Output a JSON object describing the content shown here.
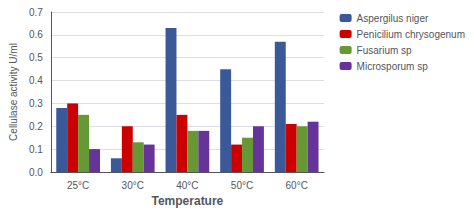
{
  "chart_data": {
    "type": "bar",
    "xlabel": "Temperature",
    "ylabel": "Cellulase activity U/ml",
    "categories": [
      "25°C",
      "30°C",
      "40°C",
      "50°C",
      "60°C"
    ],
    "series": [
      {
        "name": "Aspergilus niger",
        "color": "#3B5998",
        "values": [
          0.28,
          0.06,
          0.63,
          0.45,
          0.57
        ]
      },
      {
        "name": "Penicilium chrysogenum",
        "color": "#CC0000",
        "values": [
          0.3,
          0.2,
          0.25,
          0.12,
          0.21
        ]
      },
      {
        "name": "Fusarium sp",
        "color": "#669933",
        "values": [
          0.25,
          0.13,
          0.18,
          0.15,
          0.2
        ]
      },
      {
        "name": "Microsporum sp",
        "color": "#663399",
        "values": [
          0.1,
          0.12,
          0.18,
          0.2,
          0.22
        ]
      }
    ],
    "ylim": [
      0,
      0.7
    ],
    "yticks": [
      {
        "value": 0,
        "label": "0.0"
      },
      0.1,
      0.2,
      0.3,
      0.4,
      0.5,
      0.6,
      0.7
    ],
    "grid": true,
    "legend": "upper right"
  }
}
